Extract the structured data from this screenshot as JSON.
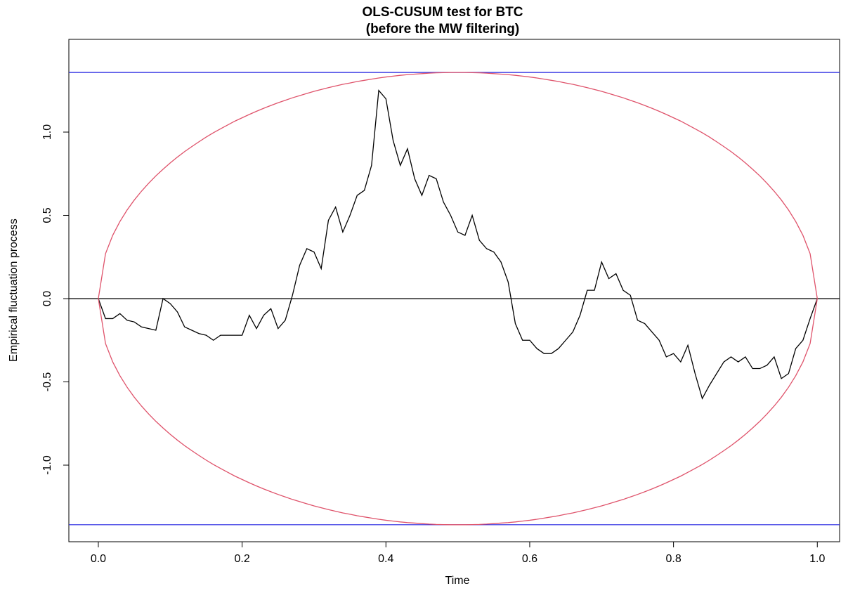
{
  "chart_data": {
    "type": "line",
    "title": "OLS-CUSUM test for BTC",
    "subtitle": "(before the MW filtering)",
    "x_label": "Time",
    "y_label": "Empirical fluctuation process",
    "x": [
      0,
      0.01,
      0.02,
      0.03,
      0.04,
      0.05,
      0.06,
      0.07,
      0.08,
      0.09,
      0.1,
      0.11,
      0.12,
      0.13,
      0.14,
      0.15,
      0.16,
      0.17,
      0.18,
      0.19,
      0.2,
      0.21,
      0.22,
      0.23,
      0.24,
      0.25,
      0.26,
      0.27,
      0.28,
      0.29,
      0.3,
      0.31,
      0.32,
      0.33,
      0.34,
      0.35,
      0.36,
      0.37,
      0.38,
      0.39,
      0.4,
      0.41,
      0.42,
      0.43,
      0.44,
      0.45,
      0.46,
      0.47,
      0.48,
      0.49,
      0.5,
      0.51,
      0.52,
      0.53,
      0.54,
      0.55,
      0.56,
      0.57,
      0.58,
      0.59,
      0.6,
      0.61,
      0.62,
      0.63,
      0.64,
      0.65,
      0.66,
      0.67,
      0.68,
      0.69,
      0.7,
      0.71,
      0.72,
      0.73,
      0.74,
      0.75,
      0.76,
      0.77,
      0.78,
      0.79,
      0.8,
      0.81,
      0.82,
      0.83,
      0.84,
      0.85,
      0.86,
      0.87,
      0.88,
      0.89,
      0.9,
      0.91,
      0.92,
      0.93,
      0.94,
      0.95,
      0.96,
      0.97,
      0.98,
      0.99,
      1
    ],
    "series": [
      {
        "color": "#000000",
        "values": [
          0,
          -0.12,
          -0.12,
          -0.09,
          -0.13,
          -0.14,
          -0.17,
          -0.18,
          -0.19,
          0.0,
          -0.03,
          -0.08,
          -0.17,
          -0.19,
          -0.21,
          -0.22,
          -0.25,
          -0.22,
          -0.22,
          -0.22,
          -0.22,
          -0.1,
          -0.18,
          -0.1,
          -0.06,
          -0.18,
          -0.13,
          0.02,
          0.2,
          0.3,
          0.28,
          0.18,
          0.47,
          0.55,
          0.4,
          0.5,
          0.62,
          0.65,
          0.8,
          1.25,
          1.2,
          0.95,
          0.8,
          0.9,
          0.72,
          0.62,
          0.74,
          0.72,
          0.58,
          0.5,
          0.4,
          0.38,
          0.5,
          0.35,
          0.3,
          0.28,
          0.22,
          0.1,
          -0.15,
          -0.25,
          -0.25,
          -0.3,
          -0.33,
          -0.33,
          -0.3,
          -0.25,
          -0.2,
          -0.1,
          0.05,
          0.05,
          0.22,
          0.12,
          0.15,
          0.05,
          0.02,
          -0.13,
          -0.15,
          -0.2,
          -0.25,
          -0.35,
          -0.33,
          -0.38,
          -0.28,
          -0.45,
          -0.6,
          -0.52,
          -0.45,
          -0.38,
          -0.35,
          -0.38,
          -0.35,
          -0.42,
          -0.42,
          -0.4,
          -0.35,
          -0.48,
          -0.45,
          -0.3,
          -0.25,
          -0.12,
          0
        ]
      },
      {
        "color": "#df536b",
        "values": [
          0,
          0.27,
          0.38,
          0.463,
          0.532,
          0.592,
          0.645,
          0.693,
          0.737,
          0.777,
          0.815,
          0.85,
          0.883,
          0.913,
          0.942,
          0.97,
          0.996,
          1.02,
          1.043,
          1.066,
          1.086,
          1.106,
          1.125,
          1.143,
          1.16,
          1.176,
          1.191,
          1.206,
          1.219,
          1.232,
          1.245,
          1.256,
          1.267,
          1.277,
          1.287,
          1.295,
          1.304,
          1.311,
          1.318,
          1.325,
          1.331,
          1.336,
          1.341,
          1.345,
          1.348,
          1.351,
          1.354,
          1.356,
          1.357,
          1.358,
          1.358,
          1.358,
          1.357,
          1.356,
          1.354,
          1.351,
          1.348,
          1.345,
          1.341,
          1.336,
          1.331,
          1.325,
          1.318,
          1.311,
          1.304,
          1.295,
          1.287,
          1.277,
          1.267,
          1.256,
          1.245,
          1.232,
          1.219,
          1.206,
          1.191,
          1.176,
          1.16,
          1.143,
          1.125,
          1.106,
          1.086,
          1.066,
          1.043,
          1.02,
          0.996,
          0.97,
          0.942,
          0.913,
          0.883,
          0.85,
          0.815,
          0.777,
          0.737,
          0.693,
          0.645,
          0.592,
          0.532,
          0.463,
          0.38,
          0.27,
          0
        ]
      },
      {
        "color": "#df536b",
        "values": [
          0,
          -0.27,
          -0.38,
          -0.463,
          -0.532,
          -0.592,
          -0.645,
          -0.693,
          -0.737,
          -0.777,
          -0.815,
          -0.85,
          -0.883,
          -0.913,
          -0.942,
          -0.97,
          -0.996,
          -1.02,
          -1.043,
          -1.066,
          -1.086,
          -1.106,
          -1.125,
          -1.143,
          -1.16,
          -1.176,
          -1.191,
          -1.206,
          -1.219,
          -1.232,
          -1.245,
          -1.256,
          -1.267,
          -1.277,
          -1.287,
          -1.295,
          -1.304,
          -1.311,
          -1.318,
          -1.325,
          -1.331,
          -1.336,
          -1.341,
          -1.345,
          -1.348,
          -1.351,
          -1.354,
          -1.356,
          -1.357,
          -1.358,
          -1.358,
          -1.358,
          -1.357,
          -1.356,
          -1.354,
          -1.351,
          -1.348,
          -1.345,
          -1.341,
          -1.336,
          -1.331,
          -1.325,
          -1.318,
          -1.311,
          -1.304,
          -1.295,
          -1.287,
          -1.277,
          -1.267,
          -1.256,
          -1.245,
          -1.232,
          -1.219,
          -1.206,
          -1.191,
          -1.176,
          -1.16,
          -1.143,
          -1.125,
          -1.106,
          -1.086,
          -1.066,
          -1.043,
          -1.02,
          -0.996,
          -0.97,
          -0.942,
          -0.913,
          -0.883,
          -0.85,
          -0.815,
          -0.777,
          -0.737,
          -0.693,
          -0.645,
          -0.592,
          -0.532,
          -0.463,
          -0.38,
          -0.27,
          0
        ]
      }
    ],
    "hlines": [
      {
        "value": 1.358,
        "color": "#2020e0"
      },
      {
        "value": -1.358,
        "color": "#2020e0"
      },
      {
        "value": 0,
        "color": "#000000"
      }
    ],
    "xlim": [
      -0.041,
      1.031
    ],
    "ylim": [
      -1.46,
      1.557
    ],
    "xticks": [
      {
        "value": 0,
        "label": "0.0"
      },
      0.2,
      0.4,
      0.6,
      0.8,
      {
        "value": 1,
        "label": "1.0"
      }
    ],
    "yticks": [
      {
        "value": -1,
        "label": "-1.0"
      },
      -0.5,
      {
        "value": 0,
        "label": "0.0"
      },
      0.5,
      {
        "value": 1,
        "label": "1.0"
      }
    ],
    "grid": false
  }
}
